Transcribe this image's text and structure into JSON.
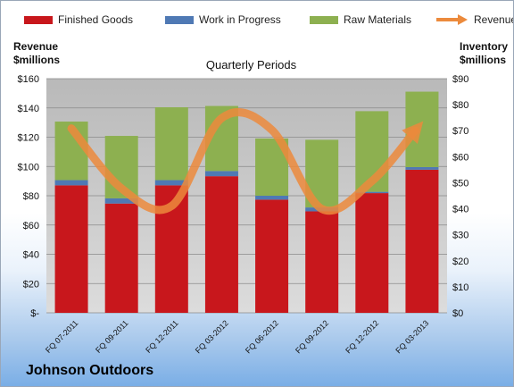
{
  "legend": {
    "finished_goods": "Finished Goods",
    "work_in_progress": "Work in Progress",
    "raw_materials": "Raw Materials",
    "revenue": "Revenue"
  },
  "axes": {
    "left_title_line1": "Revenue",
    "left_title_line2": "$millions",
    "right_title_line1": "Inventory",
    "right_title_line2": "$millions"
  },
  "company": "Johnson Outdoors",
  "colors": {
    "finished_goods": "#c8171c",
    "work_in_progress": "#4f79b4",
    "raw_materials": "#8db050",
    "revenue": "#ec8a3c",
    "plot_background": "#c8c8c8"
  },
  "chart_data": {
    "type": "bar",
    "subtype": "stacked bar with line overlay",
    "title": "Quarterly Periods",
    "categories": [
      "FQ 07-2011",
      "FQ 09-2011",
      "FQ 12-2011",
      "FQ 03-2012",
      "FQ 06-2012",
      "FQ 09-2012",
      "FQ 12-2012",
      "FQ 03-2013"
    ],
    "left_axis": {
      "label": "Revenue $millions",
      "range": [
        0,
        160
      ],
      "ticks": [
        0,
        20,
        40,
        60,
        80,
        100,
        120,
        140,
        160
      ],
      "tick_labels": [
        "$-",
        "$20",
        "$40",
        "$60",
        "$80",
        "$100",
        "$120",
        "$140",
        "$160"
      ]
    },
    "right_axis": {
      "label": "Inventory $millions",
      "range": [
        0,
        90
      ],
      "ticks": [
        0,
        10,
        20,
        30,
        40,
        50,
        60,
        70,
        80,
        90
      ],
      "tick_labels": [
        "$0",
        "$10",
        "$20",
        "$30",
        "$40",
        "$50",
        "$60",
        "$70",
        "$80",
        "$90"
      ]
    },
    "series": [
      {
        "name": "Finished Goods",
        "axis": "right",
        "values": [
          49,
          42,
          49,
          52.5,
          43.5,
          39,
          46,
          55
        ]
      },
      {
        "name": "Work in Progress",
        "axis": "right",
        "values": [
          2,
          2,
          2,
          2,
          1.5,
          1.5,
          0.5,
          1
        ]
      },
      {
        "name": "Raw Materials",
        "axis": "right",
        "values": [
          22.5,
          24,
          28,
          25,
          22,
          26,
          31,
          29
        ]
      },
      {
        "name": "Revenue",
        "type": "line",
        "axis": "left",
        "values": [
          126,
          85,
          73,
          133,
          125,
          71,
          90,
          130
        ]
      }
    ],
    "grid": true,
    "legend_position": "top"
  }
}
